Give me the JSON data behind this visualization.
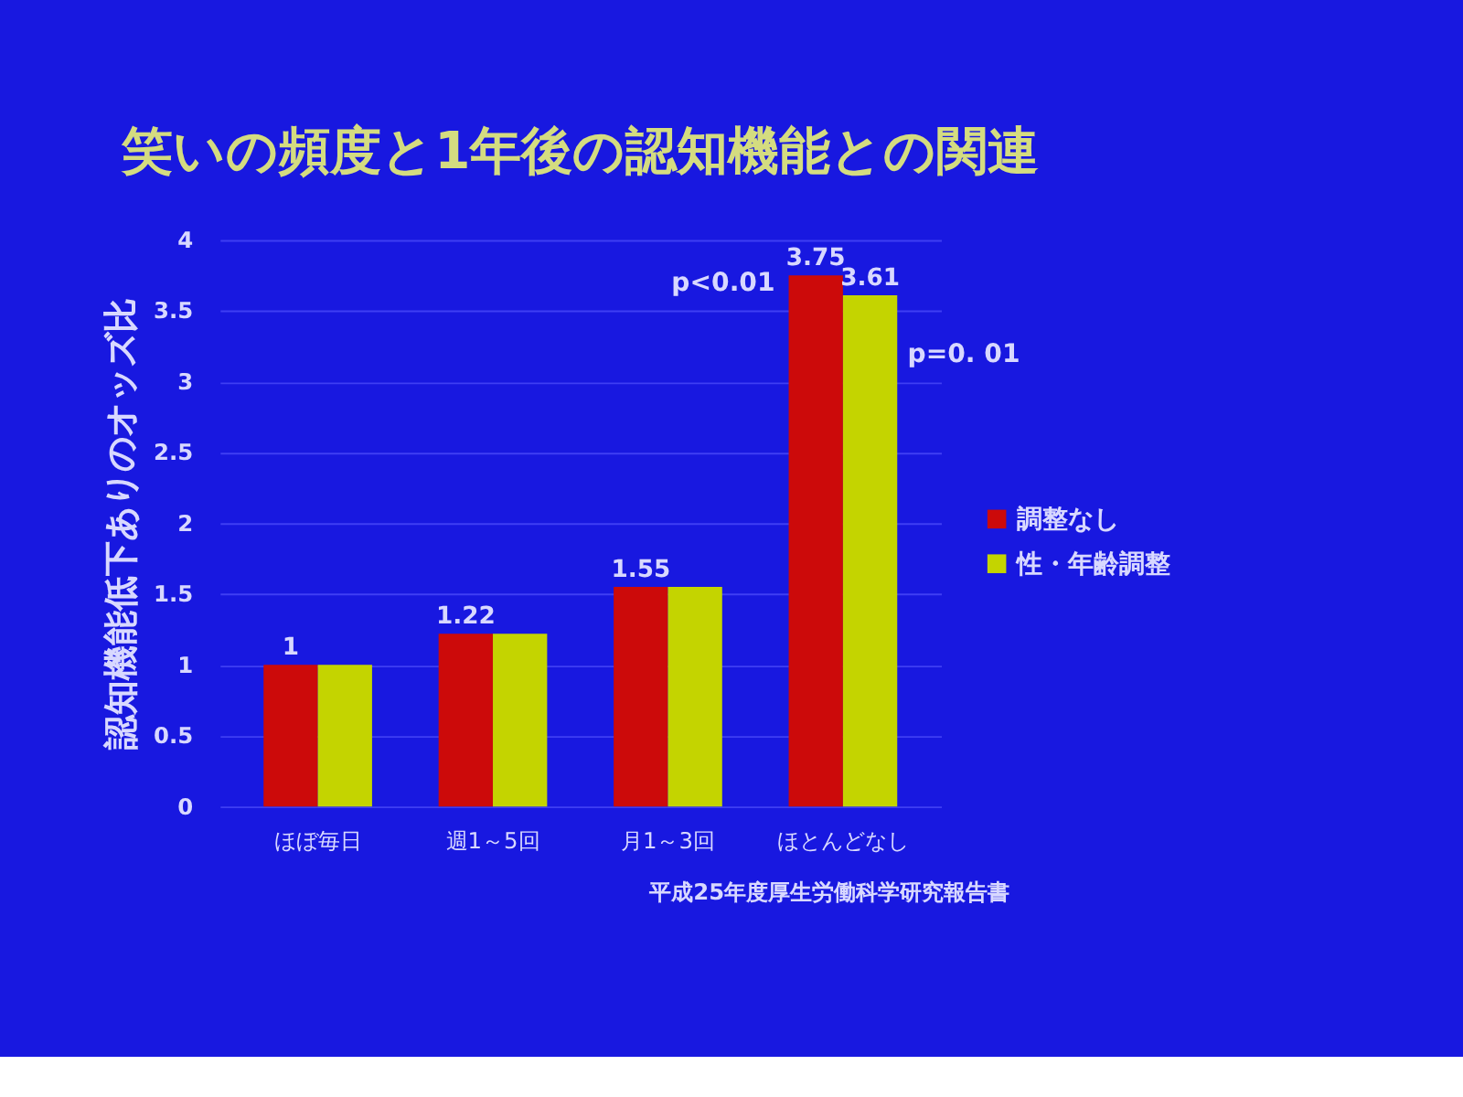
{
  "chart_data": {
    "type": "bar",
    "title": "笑いの頻度と1年後の認知機能との関連",
    "ylabel": "認知機能低下ありのオッズ比",
    "categories": [
      "ほぼ毎日",
      "週1～5回",
      "月1～3回",
      "ほとんどなし"
    ],
    "series": [
      {
        "name": "調整なし",
        "color": "#cc0a0a",
        "values": [
          1,
          1.22,
          1.55,
          3.75
        ],
        "value_labels": [
          "1",
          "1.22",
          "1.55",
          "3.75"
        ]
      },
      {
        "name": "性・年齢調整",
        "color": "#c4d400",
        "values": [
          1,
          1.22,
          1.55,
          3.61
        ],
        "value_labels": [
          null,
          null,
          null,
          "3.61"
        ]
      }
    ],
    "ylim": [
      0,
      4
    ],
    "yticks": [
      0,
      0.5,
      1,
      1.5,
      2,
      2.5,
      3,
      3.5,
      4
    ],
    "grid": "y",
    "legend": "right",
    "annotations": [
      {
        "text": "p<0.01",
        "x": "ほとんどなし",
        "y": 3.7
      },
      {
        "text": "p=0. 01",
        "x": "ほとんどなし",
        "y": 3.2
      },
      "平成25年度厚生労働科学研究報告書"
    ]
  }
}
